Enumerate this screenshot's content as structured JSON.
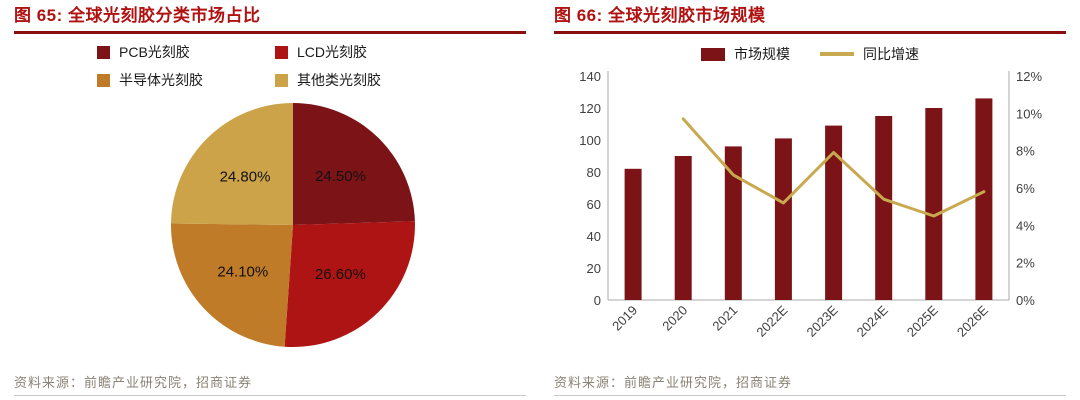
{
  "colors": {
    "title_red": "#B01212",
    "rule_red": "#8B0E0E",
    "bar_maroon": "#7C1417",
    "line_gold": "#C9A94F",
    "source_gray": "#8A8274",
    "axis_gray": "#ABABAB",
    "divider_gray": "#C9C9C9"
  },
  "figure_left": {
    "title": "图 65:  全球光刻胶分类市场占比",
    "source": "资料来源：前瞻产业研究院，招商证券"
  },
  "figure_right": {
    "title": "图 66:  全球光刻胶市场规模",
    "source": "资料来源：前瞻产业研究院，招商证券"
  },
  "chart_data": [
    {
      "type": "pie",
      "title": "全球光刻胶分类市场占比",
      "legend_position": "top",
      "start_angle_deg": 0,
      "direction": "clockwise",
      "slices": [
        {
          "label": "PCB光刻胶",
          "value": 24.5,
          "display": "24.50%",
          "color": "#7C1417"
        },
        {
          "label": "LCD光刻胶",
          "value": 26.6,
          "display": "26.60%",
          "color": "#AF1414"
        },
        {
          "label": "半导体光刻胶",
          "value": 24.1,
          "display": "24.10%",
          "color": "#C07B28"
        },
        {
          "label": "其他类光刻胶",
          "value": 24.8,
          "display": "24.80%",
          "color": "#CCA349"
        }
      ]
    },
    {
      "type": "bar",
      "title": "全球光刻胶市场规模",
      "legend_position": "top",
      "grid": false,
      "categories": [
        "2019",
        "2020",
        "2021",
        "2022E",
        "2023E",
        "2024E",
        "2025E",
        "2026E"
      ],
      "series": [
        {
          "name": "市场规模",
          "kind": "bar",
          "axis": "left",
          "color": "#7C1417",
          "values": [
            82,
            90,
            96,
            101,
            109,
            115,
            120,
            126
          ]
        },
        {
          "name": "同比增速",
          "kind": "line",
          "axis": "right",
          "color": "#C9A94F",
          "values": [
            null,
            9.7,
            6.7,
            5.2,
            7.9,
            5.4,
            4.5,
            5.8
          ]
        }
      ],
      "left_axis": {
        "min": 0,
        "max": 140,
        "step": 20
      },
      "right_axis": {
        "min": 0,
        "max": 12,
        "step": 2,
        "suffix": "%"
      }
    }
  ]
}
